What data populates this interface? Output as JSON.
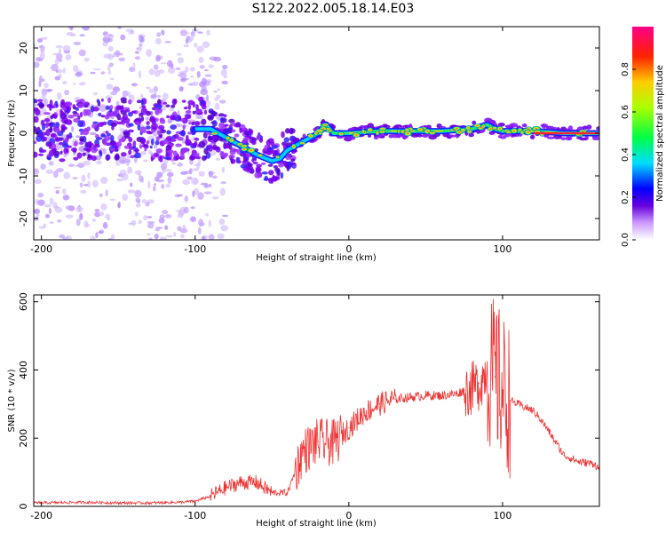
{
  "title": "S122.2022.005.18.14.E03",
  "chart_data": [
    {
      "type": "heatmap",
      "xlabel": "Height of straight line (km)",
      "ylabel": "Frequency (Hz)",
      "xlim": [
        -205,
        163
      ],
      "ylim": [
        -25,
        25
      ],
      "xticks": [
        -200,
        -100,
        0,
        100
      ],
      "yticks": [
        -20,
        -10,
        0,
        10,
        20
      ],
      "colorbar": {
        "label": "Normalized spectral amplitude",
        "range": [
          0,
          1
        ],
        "ticks": [
          "0.0",
          "0.2",
          "0.4",
          "0.6",
          "0.8"
        ],
        "colormap": "rainbow (white-violet-blue-cyan-green-yellow-red-magenta)"
      },
      "ridge": {
        "x": [
          -205,
          -180,
          -150,
          -120,
          -100,
          -90,
          -80,
          -70,
          -60,
          -50,
          -45,
          -40,
          -30,
          -20,
          -15,
          -10,
          0,
          20,
          40,
          60,
          80,
          90,
          95,
          100,
          120,
          140,
          163
        ],
        "frequency": [
          1,
          0.5,
          1,
          0.5,
          1,
          1,
          -1,
          -3,
          -5,
          -6.5,
          -6,
          -4,
          -2,
          0,
          2,
          0,
          0,
          0.5,
          0.5,
          0.5,
          1,
          2,
          1,
          0.5,
          0.5,
          0,
          0
        ]
      }
    },
    {
      "type": "line",
      "xlabel": "Height of straight line (km)",
      "ylabel": "SNR (10 * v/v)",
      "xlim": [
        -205,
        163
      ],
      "ylim": [
        0,
        620
      ],
      "xticks": [
        -200,
        -100,
        0,
        100
      ],
      "yticks": [
        0,
        200,
        400,
        600
      ],
      "series": [
        {
          "color": "#ee3333",
          "x": [
            -205,
            -190,
            -170,
            -150,
            -130,
            -110,
            -100,
            -90,
            -80,
            -70,
            -60,
            -50,
            -40,
            -30,
            -20,
            -10,
            0,
            10,
            20,
            30,
            40,
            50,
            60,
            70,
            75,
            80,
            85,
            90,
            95,
            100,
            105,
            110,
            120,
            125,
            130,
            140,
            150,
            160,
            163
          ],
          "y": [
            10,
            11,
            12,
            10,
            10,
            12,
            15,
            30,
            55,
            70,
            70,
            40,
            40,
            160,
            190,
            185,
            230,
            275,
            300,
            315,
            320,
            325,
            325,
            330,
            340,
            345,
            360,
            400,
            380,
            340,
            310,
            300,
            280,
            255,
            220,
            150,
            130,
            125,
            105
          ]
        }
      ]
    }
  ]
}
